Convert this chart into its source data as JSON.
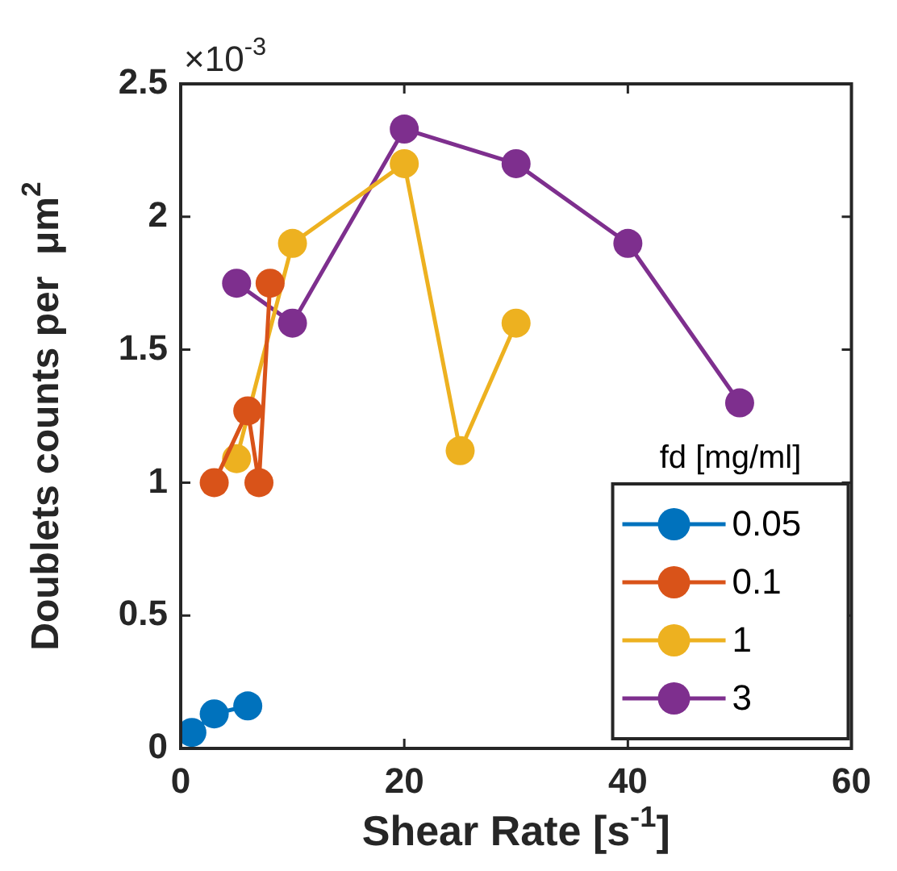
{
  "chart_data": {
    "type": "line",
    "xlabel": "Shear Rate [s$^{-1}$]",
    "ylabel": "Doublets counts per  μm$^{2}$",
    "annotations": [
      "×10$^{-3}$"
    ],
    "xlim": [
      0,
      60
    ],
    "xticks": [
      0,
      20,
      40,
      60
    ],
    "ylim": [
      0,
      2.5
    ],
    "yticks": [
      0,
      0.5,
      1,
      1.5,
      2,
      2.5
    ],
    "grid": false,
    "legend": "bottom right",
    "legend_title": "fd [mg/ml]",
    "marker": "circle",
    "line_style": "solid",
    "series": [
      {
        "name": "0.05",
        "color": "#0072bd",
        "x": [
          1,
          3,
          6
        ],
        "values": [
          0.06,
          0.13,
          0.16
        ]
      },
      {
        "name": "0.1",
        "color": "#d95319",
        "x": [
          3,
          6,
          7,
          8
        ],
        "values": [
          1.0,
          1.27,
          1.0,
          1.75
        ]
      },
      {
        "name": "1",
        "color": "#edb120",
        "x": [
          5,
          10,
          20,
          25,
          30
        ],
        "values": [
          1.09,
          1.9,
          2.2,
          1.12,
          1.6
        ]
      },
      {
        "name": "3",
        "color": "#7e2f8e",
        "x": [
          5,
          10,
          20,
          30,
          40,
          50
        ],
        "values": [
          1.75,
          1.6,
          2.33,
          2.2,
          1.9,
          1.3
        ]
      }
    ]
  }
}
